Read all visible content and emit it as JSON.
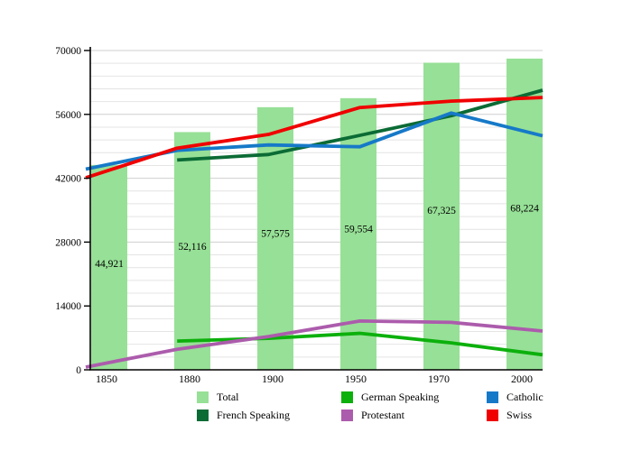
{
  "chart_data": {
    "type": "bar+line",
    "title": "",
    "xlabel": "",
    "ylabel": "",
    "categories": [
      "1850",
      "1880",
      "1900",
      "1950",
      "1970",
      "2000"
    ],
    "yaxis": {
      "min": 0,
      "max": 70000,
      "major_step": 14000,
      "minor_step": 2800,
      "ticks": [
        "0",
        "14000",
        "28000",
        "42000",
        "56000",
        "70000"
      ]
    },
    "grid": "horizontal-only",
    "bar_series": {
      "name": "Total",
      "color": "#97E097",
      "values": [
        44921,
        52116,
        57575,
        59554,
        67325,
        68224
      ],
      "value_labels": [
        "44,921",
        "52,116",
        "57,575",
        "59,554",
        "67,325",
        "68,224"
      ]
    },
    "line_series": [
      {
        "name": "French Speaking",
        "color": "#0B6B35",
        "values": [
          null,
          46000,
          47200,
          51400,
          55700,
          61300
        ]
      },
      {
        "name": "German Speaking",
        "color": "#0CB00C",
        "values": [
          null,
          6300,
          6900,
          8000,
          5900,
          3300
        ]
      },
      {
        "name": "Protestant",
        "color": "#AC5CAC",
        "values": [
          600,
          4500,
          7300,
          10700,
          10400,
          8500
        ]
      },
      {
        "name": "Catholic",
        "color": "#1679C8",
        "values": [
          44000,
          48100,
          49300,
          48900,
          56300,
          51300
        ]
      },
      {
        "name": "Swiss",
        "color": "#F00000",
        "values": [
          42100,
          48600,
          51600,
          57500,
          58900,
          59700
        ]
      }
    ],
    "legend": {
      "position": "bottom",
      "items": [
        {
          "label": "Total",
          "color": "#97E097"
        },
        {
          "label": "German Speaking",
          "color": "#0CB00C"
        },
        {
          "label": "Catholic",
          "color": "#1679C8"
        },
        {
          "label": "French Speaking",
          "color": "#0B6B35"
        },
        {
          "label": "Protestant",
          "color": "#AC5CAC"
        },
        {
          "label": "Swiss",
          "color": "#F00000"
        }
      ]
    }
  }
}
